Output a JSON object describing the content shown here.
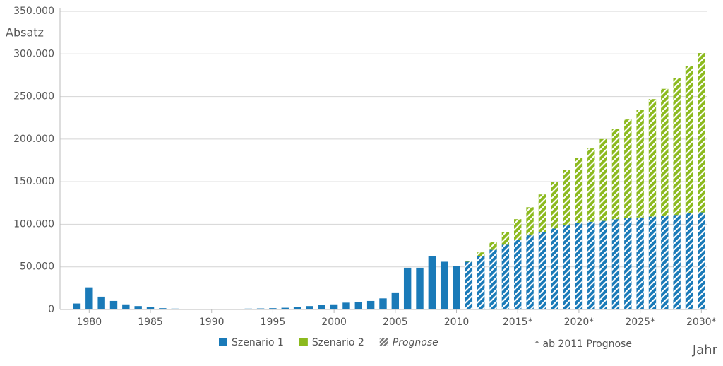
{
  "chart_data": {
    "type": "stacked_bar",
    "y_label": "Absatz",
    "x_label": "Jahr",
    "note": "* ab 2011 Prognose",
    "categories": [
      null,
      "1980",
      null,
      null,
      null,
      null,
      "1985",
      null,
      null,
      null,
      null,
      "1990",
      null,
      null,
      null,
      null,
      "1995",
      null,
      null,
      null,
      null,
      "2000",
      null,
      null,
      null,
      null,
      "2005",
      null,
      null,
      null,
      null,
      "2010",
      null,
      null,
      null,
      null,
      "2015*",
      null,
      null,
      null,
      null,
      "2020*",
      null,
      null,
      null,
      null,
      "2025*",
      null,
      null,
      null,
      null,
      "2030*"
    ],
    "series": [
      {
        "name": "Szenario 1",
        "color": "#1a7ab8",
        "values": [
          7000,
          26000,
          15000,
          10000,
          6000,
          4000,
          2500,
          1500,
          1000,
          500,
          300,
          300,
          500,
          700,
          1000,
          1200,
          1500,
          2000,
          3000,
          4000,
          5000,
          6000,
          8000,
          9000,
          10000,
          13000,
          20000,
          49000,
          49000,
          63000,
          56000,
          51000,
          56000,
          63000,
          70000,
          76000,
          82000,
          87000,
          91000,
          95000,
          99000,
          102000,
          103000,
          104000,
          106000,
          107000,
          108000,
          109000,
          110000,
          111000,
          113000,
          114000
        ]
      },
      {
        "name": "Szenario 2",
        "color": "#8cba1e",
        "values": [
          null,
          null,
          null,
          null,
          null,
          null,
          null,
          null,
          null,
          null,
          null,
          null,
          null,
          null,
          null,
          null,
          null,
          null,
          null,
          null,
          null,
          null,
          null,
          null,
          null,
          null,
          null,
          null,
          null,
          null,
          null,
          null,
          1000,
          4000,
          9000,
          15000,
          24000,
          33000,
          44000,
          55000,
          65000,
          76000,
          86000,
          96000,
          106000,
          116000,
          126000,
          138000,
          149000,
          161000,
          173000,
          187000
        ]
      }
    ],
    "prognose": {
      "name": "Prognose",
      "start_index": 32
    },
    "ylim": [
      0,
      350000
    ],
    "yticks": [
      0,
      {
        "value": 50000,
        "label": "50.000"
      },
      {
        "value": 100000,
        "label": "100.000"
      },
      {
        "value": 150000,
        "label": "150.000"
      },
      {
        "value": 200000,
        "label": "200.000"
      },
      {
        "value": 250000,
        "label": "250.000"
      },
      {
        "value": 300000,
        "label": "300.000"
      },
      {
        "value": 350000,
        "label": "350.000"
      }
    ],
    "grid": true
  }
}
